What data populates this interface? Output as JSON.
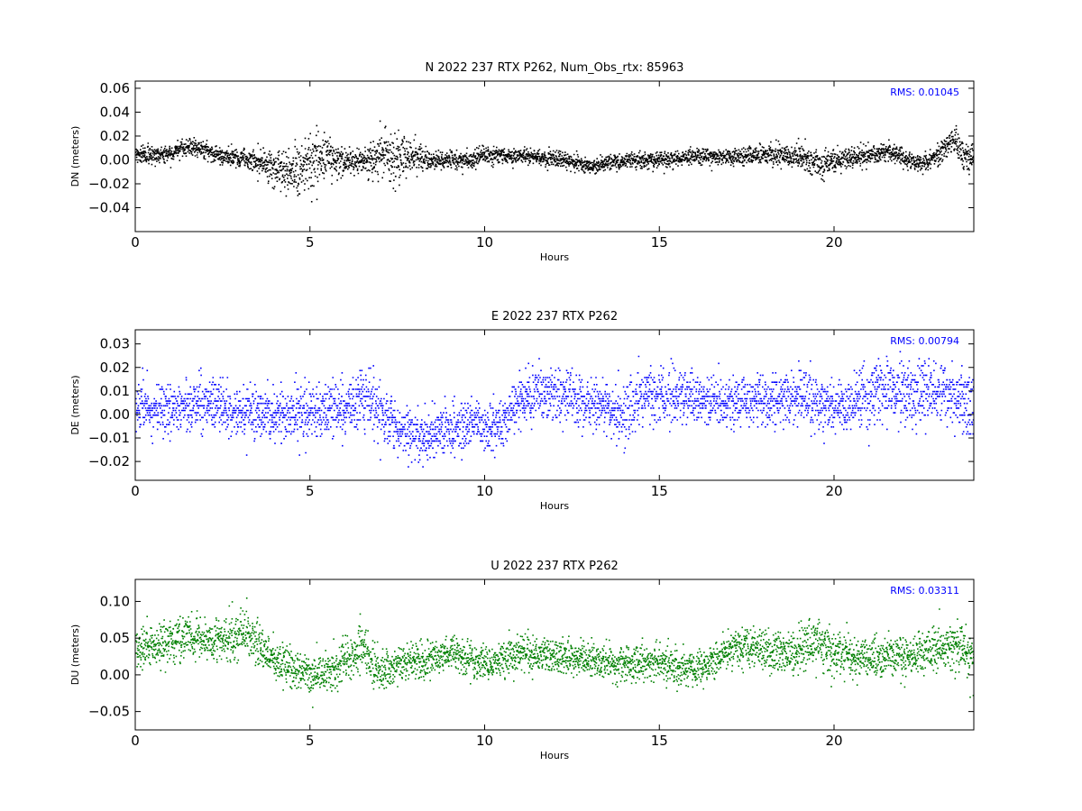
{
  "chart_data": [
    {
      "type": "scatter",
      "title": "N 2022 237 RTX  P262, Num_Obs_rtx: 85963",
      "xlabel": "Hours",
      "ylabel": "DN (meters)",
      "xlim": [
        0,
        24
      ],
      "ylim": [
        -0.06,
        0.066
      ],
      "xticks": [
        0,
        5,
        10,
        15,
        20
      ],
      "yticks": [
        -0.04,
        -0.02,
        0.0,
        0.02,
        0.04,
        0.06
      ],
      "ytick_labels": [
        "−0.04",
        "−0.02",
        "0.00",
        "0.02",
        "0.04",
        "0.06"
      ],
      "color": "#000000",
      "annotation": "RMS:  0.01045",
      "annotation_color": "#0000ff",
      "grid": false,
      "profile": {
        "x": [
          0,
          1,
          1.6,
          2.5,
          3.3,
          4,
          4.5,
          5,
          5.5,
          6,
          6.5,
          7,
          7.3,
          7.8,
          8.5,
          9.5,
          10,
          11,
          12,
          13,
          14,
          15,
          16,
          17,
          18,
          18.5,
          19,
          19.6,
          20,
          21,
          21.5,
          22.5,
          23,
          23.4,
          23.8,
          24
        ],
        "center": [
          0.005,
          0.005,
          0.012,
          0.004,
          0.0,
          -0.005,
          -0.01,
          0.0,
          0.005,
          -0.003,
          0.0,
          0.002,
          0.003,
          0.005,
          0.0,
          0.0,
          0.005,
          0.004,
          0.002,
          -0.005,
          0.0,
          0.001,
          0.003,
          0.003,
          0.005,
          0.005,
          0.002,
          -0.003,
          0.0,
          0.004,
          0.008,
          -0.003,
          0.005,
          0.018,
          0.0,
          0.005
        ],
        "spread": [
          0.007,
          0.006,
          0.007,
          0.006,
          0.008,
          0.014,
          0.018,
          0.022,
          0.02,
          0.01,
          0.01,
          0.018,
          0.022,
          0.014,
          0.007,
          0.006,
          0.007,
          0.006,
          0.006,
          0.006,
          0.006,
          0.006,
          0.006,
          0.006,
          0.008,
          0.009,
          0.009,
          0.011,
          0.008,
          0.007,
          0.007,
          0.007,
          0.008,
          0.009,
          0.012,
          0.008
        ]
      }
    },
    {
      "type": "scatter",
      "title": "E 2022 237 RTX  P262",
      "xlabel": "Hours",
      "ylabel": "DE (meters)",
      "xlim": [
        0,
        24
      ],
      "ylim": [
        -0.028,
        0.036
      ],
      "xticks": [
        0,
        5,
        10,
        15,
        20
      ],
      "yticks": [
        -0.02,
        -0.01,
        0.0,
        0.01,
        0.02,
        0.03
      ],
      "ytick_labels": [
        "−0.02",
        "−0.01",
        "0.00",
        "0.01",
        "0.02",
        "0.03"
      ],
      "color": "#0000ff",
      "annotation": "RMS:  0.00794",
      "annotation_color": "#0000ff",
      "grid": false,
      "profile": {
        "x": [
          0,
          1,
          2,
          3,
          4,
          5,
          6,
          6.6,
          7.5,
          8.5,
          9.5,
          10.5,
          11,
          12,
          13,
          14,
          14.5,
          15,
          16,
          17,
          18,
          19,
          19.5,
          20,
          21,
          21.5,
          22,
          23,
          23.5,
          24
        ],
        "center": [
          0.003,
          0.002,
          0.005,
          0.001,
          0.0,
          0.001,
          0.003,
          0.008,
          -0.006,
          -0.008,
          -0.005,
          -0.004,
          0.008,
          0.01,
          0.006,
          0.0,
          0.008,
          0.008,
          0.007,
          0.005,
          0.006,
          0.008,
          0.005,
          0.004,
          0.008,
          0.012,
          0.01,
          0.01,
          0.007,
          0.003
        ],
        "spread": [
          0.009,
          0.01,
          0.01,
          0.01,
          0.01,
          0.01,
          0.01,
          0.011,
          0.01,
          0.009,
          0.01,
          0.01,
          0.01,
          0.01,
          0.01,
          0.01,
          0.011,
          0.011,
          0.01,
          0.01,
          0.01,
          0.01,
          0.01,
          0.01,
          0.011,
          0.012,
          0.012,
          0.011,
          0.012,
          0.012
        ]
      }
    },
    {
      "type": "scatter",
      "title": "U 2022 237 RTX  P262",
      "xlabel": "Hours",
      "ylabel": "DU (meters)",
      "xlim": [
        0,
        24
      ],
      "ylim": [
        -0.075,
        0.13
      ],
      "xticks": [
        0,
        5,
        10,
        15,
        20
      ],
      "yticks": [
        -0.05,
        0.0,
        0.05,
        0.1
      ],
      "ytick_labels": [
        "−0.05",
        "0.00",
        "0.05",
        "0.10"
      ],
      "color": "#008000",
      "annotation": "RMS:  0.03311",
      "annotation_color": "#0000ff",
      "grid": false,
      "profile": {
        "x": [
          0,
          1,
          1.5,
          2.3,
          3,
          4,
          5,
          5.5,
          6.5,
          7,
          8,
          9,
          10,
          11,
          12,
          13,
          14,
          15,
          16,
          17,
          17.8,
          18.5,
          19.5,
          20,
          21,
          22,
          23,
          23.5,
          24
        ],
        "center": [
          0.035,
          0.045,
          0.055,
          0.045,
          0.06,
          0.02,
          0.0,
          0.005,
          0.04,
          0.005,
          0.02,
          0.03,
          0.015,
          0.03,
          0.025,
          0.02,
          0.015,
          0.02,
          0.005,
          0.035,
          0.04,
          0.025,
          0.045,
          0.03,
          0.025,
          0.025,
          0.035,
          0.04,
          0.02
        ],
        "spread": [
          0.025,
          0.025,
          0.025,
          0.025,
          0.03,
          0.025,
          0.025,
          0.025,
          0.03,
          0.025,
          0.022,
          0.022,
          0.022,
          0.022,
          0.022,
          0.022,
          0.022,
          0.022,
          0.022,
          0.022,
          0.025,
          0.025,
          0.03,
          0.028,
          0.025,
          0.025,
          0.028,
          0.03,
          0.03
        ]
      }
    }
  ]
}
